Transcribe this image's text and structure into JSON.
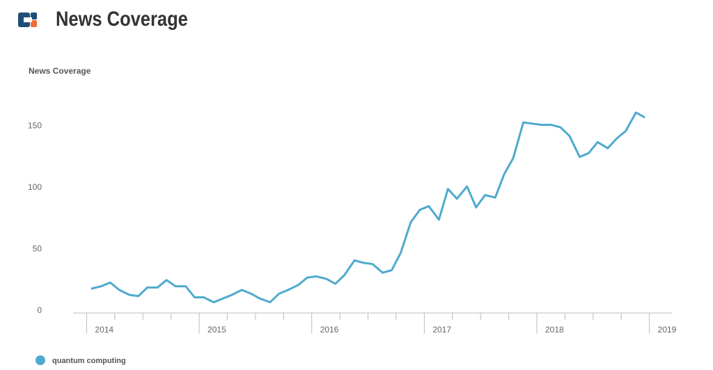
{
  "header": {
    "title": "News Coverage"
  },
  "chart_data": {
    "type": "line",
    "title": "News Coverage",
    "x": [
      2014.04,
      2014.13,
      2014.21,
      2014.29,
      2014.38,
      2014.46,
      2014.54,
      2014.63,
      2014.71,
      2014.79,
      2014.88,
      2014.96,
      2015.04,
      2015.13,
      2015.21,
      2015.29,
      2015.38,
      2015.46,
      2015.54,
      2015.63,
      2015.71,
      2015.79,
      2015.88,
      2015.96,
      2016.04,
      2016.13,
      2016.21,
      2016.29,
      2016.38,
      2016.46,
      2016.54,
      2016.63,
      2016.71,
      2016.79,
      2016.88,
      2016.96,
      2017.04,
      2017.13,
      2017.21,
      2017.29,
      2017.38,
      2017.46,
      2017.54,
      2017.63,
      2017.71,
      2017.79,
      2017.88,
      2017.96,
      2018.04,
      2018.13,
      2018.21,
      2018.29,
      2018.38,
      2018.46,
      2018.54,
      2018.63,
      2018.71,
      2018.79,
      2018.88,
      2018.96
    ],
    "series": [
      {
        "name": "quantum computing",
        "color": "#4eaacd",
        "values": [
          18,
          20,
          23,
          17,
          13,
          12,
          19,
          19,
          25,
          20,
          20,
          11,
          11,
          7,
          10,
          13,
          17,
          14,
          10,
          7,
          14,
          17,
          21,
          27,
          28,
          26,
          22,
          29,
          41,
          39,
          38,
          31,
          33,
          47,
          72,
          82,
          85,
          74,
          99,
          91,
          101,
          84,
          94,
          92,
          111,
          124,
          153,
          152,
          151,
          151,
          149,
          142,
          125,
          128,
          137,
          132,
          140,
          146,
          161,
          157
        ]
      }
    ],
    "xlim": [
      2013.88,
      2019.2
    ],
    "xticks": [
      2014,
      2015,
      2016,
      2017,
      2018,
      2019
    ],
    "xminorticks": [
      2014.25,
      2014.5,
      2014.75,
      2015.25,
      2015.5,
      2015.75,
      2016.25,
      2016.5,
      2016.75,
      2017.25,
      2017.5,
      2017.75,
      2018.25,
      2018.5,
      2018.75
    ],
    "ylim": [
      0,
      175
    ],
    "yticks": [
      0,
      50,
      100,
      150
    ],
    "grid": false,
    "legend": "bottom-left"
  }
}
